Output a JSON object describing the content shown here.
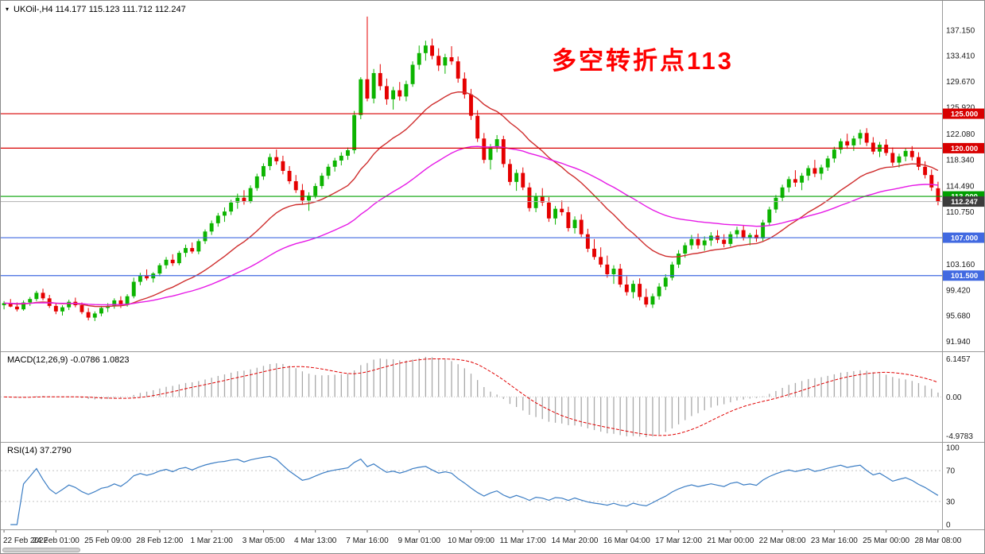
{
  "chart_data": {
    "type": "candlestick",
    "symbol": "UKOil-",
    "timeframe": "H4",
    "title": "UKOil-,H4  114.177 115.123 111.712 112.247",
    "ohlc_last": {
      "open": 114.177,
      "high": 115.123,
      "low": 111.712,
      "close": 112.247
    },
    "annotation": {
      "text": "多空转折点113",
      "color": "#fe0000"
    },
    "colors": {
      "candle_up": "#0cb400",
      "candle_down": "#e50000",
      "ma_fast": "#cf2e2e",
      "ma_slow": "#e619e6",
      "macd_bars": "#a9a9a9",
      "macd_signal": "#e00000",
      "rsi_line": "#3b7dc4",
      "current_badge": "#3c3c3c",
      "level_red": "#d80000",
      "level_green": "#00a000",
      "level_blue": "#4169e1"
    },
    "price_axis": {
      "min": 91.2,
      "max": 140.7,
      "ticks": [
        "137.150",
        "133.410",
        "129.670",
        "125.920",
        "122.080",
        "118.340",
        "114.490",
        "110.750",
        "107.010",
        "103.160",
        "99.420",
        "95.680",
        "91.940"
      ]
    },
    "levels": [
      {
        "price": 125.0,
        "label": "125.000",
        "color": "#d80000"
      },
      {
        "price": 120.0,
        "label": "120.000",
        "color": "#d80000"
      },
      {
        "price": 113.0,
        "label": "113.000",
        "color": "#00a000"
      },
      {
        "price": 107.0,
        "label": "107.000",
        "color": "#4169e1"
      },
      {
        "price": 101.5,
        "label": "101.500",
        "color": "#4169e1"
      }
    ],
    "current_price": {
      "value": 112.247,
      "label": "112.247"
    },
    "moving_averages": [
      {
        "period": 20,
        "color": "#cf2e2e"
      },
      {
        "period": 50,
        "color": "#e619e6"
      }
    ],
    "candles": [
      [
        97.2,
        97.8,
        96.6,
        97.5
      ],
      [
        97.5,
        98.1,
        96.9,
        97.0
      ],
      [
        97.0,
        97.6,
        96.3,
        96.6
      ],
      [
        96.6,
        97.9,
        96.4,
        97.6
      ],
      [
        97.6,
        98.4,
        97.1,
        98.1
      ],
      [
        98.1,
        99.3,
        97.8,
        99.0
      ],
      [
        99.0,
        99.6,
        97.9,
        98.2
      ],
      [
        98.2,
        98.7,
        96.8,
        97.1
      ],
      [
        97.1,
        97.5,
        95.9,
        96.3
      ],
      [
        96.3,
        97.2,
        95.7,
        96.9
      ],
      [
        96.9,
        98.0,
        96.5,
        97.7
      ],
      [
        97.7,
        98.3,
        96.9,
        97.2
      ],
      [
        97.2,
        97.6,
        95.9,
        96.2
      ],
      [
        96.2,
        96.8,
        95.0,
        95.4
      ],
      [
        95.4,
        96.3,
        94.9,
        96.0
      ],
      [
        96.0,
        97.1,
        95.6,
        96.8
      ],
      [
        96.8,
        97.5,
        96.2,
        97.1
      ],
      [
        97.1,
        98.2,
        96.7,
        97.9
      ],
      [
        97.9,
        98.5,
        96.8,
        97.3
      ],
      [
        97.3,
        98.8,
        97.0,
        98.5
      ],
      [
        98.5,
        101.2,
        98.2,
        100.6
      ],
      [
        100.6,
        101.9,
        100.1,
        101.5
      ],
      [
        101.5,
        102.4,
        100.8,
        101.1
      ],
      [
        101.1,
        102.0,
        100.5,
        101.8
      ],
      [
        101.8,
        103.3,
        101.4,
        103.0
      ],
      [
        103.0,
        104.2,
        102.5,
        103.8
      ],
      [
        103.8,
        104.6,
        102.9,
        103.3
      ],
      [
        103.3,
        105.1,
        103.0,
        104.8
      ],
      [
        104.8,
        106.0,
        104.2,
        105.5
      ],
      [
        105.5,
        106.3,
        104.7,
        105.0
      ],
      [
        105.0,
        106.8,
        104.6,
        106.5
      ],
      [
        106.5,
        108.2,
        106.1,
        107.9
      ],
      [
        107.9,
        109.5,
        107.4,
        109.1
      ],
      [
        109.1,
        110.6,
        108.6,
        110.2
      ],
      [
        110.2,
        111.4,
        109.3,
        110.8
      ],
      [
        110.8,
        112.5,
        110.3,
        112.1
      ],
      [
        112.1,
        113.4,
        111.2,
        112.8
      ],
      [
        112.8,
        113.9,
        111.8,
        112.3
      ],
      [
        112.3,
        114.6,
        112.0,
        114.2
      ],
      [
        114.2,
        116.3,
        113.8,
        115.9
      ],
      [
        115.9,
        117.8,
        115.4,
        117.4
      ],
      [
        117.4,
        119.2,
        116.8,
        118.7
      ],
      [
        118.7,
        119.8,
        117.6,
        118.1
      ],
      [
        118.1,
        118.9,
        116.2,
        116.7
      ],
      [
        116.7,
        117.4,
        114.8,
        115.2
      ],
      [
        115.2,
        116.1,
        113.5,
        113.9
      ],
      [
        113.9,
        114.8,
        111.9,
        112.4
      ],
      [
        112.4,
        113.6,
        110.9,
        113.1
      ],
      [
        113.1,
        114.9,
        112.7,
        114.5
      ],
      [
        114.5,
        116.4,
        114.1,
        116.0
      ],
      [
        116.0,
        117.7,
        115.5,
        117.3
      ],
      [
        117.3,
        118.6,
        116.6,
        118.2
      ],
      [
        118.2,
        119.4,
        117.5,
        118.9
      ],
      [
        118.9,
        120.1,
        118.3,
        119.7
      ],
      [
        119.7,
        125.4,
        119.2,
        124.8
      ],
      [
        124.8,
        130.3,
        124.2,
        130.0
      ],
      [
        130.0,
        139.1,
        126.8,
        127.2
      ],
      [
        127.2,
        131.5,
        126.5,
        130.9
      ],
      [
        130.9,
        132.2,
        128.4,
        129.0
      ],
      [
        129.0,
        130.1,
        126.3,
        127.1
      ],
      [
        127.1,
        128.9,
        125.6,
        128.4
      ],
      [
        128.4,
        129.6,
        126.9,
        127.5
      ],
      [
        127.5,
        129.8,
        126.8,
        129.3
      ],
      [
        129.3,
        132.6,
        128.9,
        132.1
      ],
      [
        132.1,
        134.9,
        131.4,
        133.8
      ],
      [
        133.8,
        135.6,
        132.7,
        134.9
      ],
      [
        134.9,
        135.9,
        132.9,
        133.4
      ],
      [
        133.4,
        134.5,
        131.2,
        132.0
      ],
      [
        132.0,
        133.7,
        130.8,
        133.2
      ],
      [
        133.2,
        134.8,
        132.1,
        132.6
      ],
      [
        132.6,
        133.3,
        129.5,
        130.1
      ],
      [
        130.1,
        131.0,
        127.2,
        127.8
      ],
      [
        127.8,
        128.6,
        124.1,
        124.7
      ],
      [
        124.7,
        125.5,
        120.9,
        121.4
      ],
      [
        121.4,
        122.2,
        117.8,
        118.3
      ],
      [
        118.3,
        120.6,
        116.9,
        120.1
      ],
      [
        120.1,
        121.9,
        119.4,
        121.3
      ],
      [
        121.3,
        121.8,
        117.2,
        117.7
      ],
      [
        117.7,
        118.4,
        114.6,
        115.1
      ],
      [
        115.1,
        116.9,
        113.8,
        116.4
      ],
      [
        116.4,
        117.2,
        113.9,
        114.3
      ],
      [
        114.3,
        115.0,
        110.8,
        111.3
      ],
      [
        111.3,
        113.5,
        110.7,
        113.0
      ],
      [
        113.0,
        114.2,
        111.6,
        112.1
      ],
      [
        112.1,
        112.9,
        109.3,
        109.8
      ],
      [
        109.8,
        111.6,
        108.9,
        111.2
      ],
      [
        111.2,
        112.4,
        110.2,
        110.7
      ],
      [
        110.7,
        111.5,
        107.9,
        108.4
      ],
      [
        108.4,
        110.1,
        107.6,
        109.6
      ],
      [
        109.6,
        110.4,
        107.1,
        107.5
      ],
      [
        107.5,
        108.3,
        104.9,
        105.4
      ],
      [
        105.4,
        106.8,
        103.8,
        104.2
      ],
      [
        104.2,
        105.6,
        102.7,
        103.1
      ],
      [
        103.1,
        104.4,
        101.2,
        101.7
      ],
      [
        101.7,
        103.0,
        100.3,
        102.5
      ],
      [
        102.5,
        103.2,
        99.8,
        100.2
      ],
      [
        100.2,
        101.4,
        98.6,
        99.1
      ],
      [
        99.1,
        100.8,
        98.2,
        100.3
      ],
      [
        100.3,
        101.1,
        97.9,
        98.4
      ],
      [
        98.4,
        99.6,
        96.9,
        97.3
      ],
      [
        97.3,
        98.9,
        96.8,
        98.5
      ],
      [
        98.5,
        100.4,
        98.0,
        99.9
      ],
      [
        99.9,
        101.7,
        99.4,
        101.2
      ],
      [
        101.2,
        103.5,
        100.8,
        103.1
      ],
      [
        103.1,
        105.2,
        102.6,
        104.7
      ],
      [
        104.7,
        106.3,
        104.1,
        105.9
      ],
      [
        105.9,
        107.4,
        105.3,
        106.8
      ],
      [
        106.8,
        107.6,
        105.4,
        105.9
      ],
      [
        105.9,
        107.2,
        105.1,
        106.6
      ],
      [
        106.6,
        107.8,
        105.8,
        107.3
      ],
      [
        107.3,
        108.1,
        106.2,
        106.7
      ],
      [
        106.7,
        107.5,
        105.6,
        106.1
      ],
      [
        106.1,
        107.9,
        105.7,
        107.5
      ],
      [
        107.5,
        108.6,
        106.9,
        108.1
      ],
      [
        108.1,
        108.8,
        106.6,
        107.0
      ],
      [
        107.0,
        107.7,
        105.9,
        107.4
      ],
      [
        107.4,
        108.2,
        106.4,
        106.9
      ],
      [
        106.9,
        109.6,
        106.5,
        109.2
      ],
      [
        109.2,
        111.5,
        108.8,
        111.1
      ],
      [
        111.1,
        113.2,
        110.6,
        112.8
      ],
      [
        112.8,
        114.7,
        112.3,
        114.3
      ],
      [
        114.3,
        115.9,
        113.6,
        115.5
      ],
      [
        115.5,
        116.8,
        114.4,
        115.0
      ],
      [
        115.0,
        116.4,
        113.9,
        116.0
      ],
      [
        116.0,
        117.5,
        115.3,
        117.1
      ],
      [
        117.1,
        118.3,
        115.8,
        116.3
      ],
      [
        116.3,
        117.6,
        115.4,
        117.2
      ],
      [
        117.2,
        118.9,
        116.7,
        118.5
      ],
      [
        118.5,
        120.2,
        117.9,
        119.8
      ],
      [
        119.8,
        121.4,
        119.2,
        121.0
      ],
      [
        121.0,
        122.1,
        119.9,
        120.4
      ],
      [
        120.4,
        121.8,
        119.6,
        121.4
      ],
      [
        121.4,
        122.7,
        120.5,
        122.2
      ],
      [
        122.2,
        122.9,
        120.3,
        120.8
      ],
      [
        120.8,
        121.6,
        119.1,
        119.5
      ],
      [
        119.5,
        120.9,
        118.7,
        120.5
      ],
      [
        120.5,
        121.3,
        118.9,
        119.3
      ],
      [
        119.3,
        120.1,
        117.4,
        117.9
      ],
      [
        117.9,
        119.2,
        117.2,
        118.8
      ],
      [
        118.8,
        120.0,
        118.1,
        119.6
      ],
      [
        119.6,
        120.3,
        118.2,
        118.7
      ],
      [
        118.7,
        119.4,
        116.8,
        117.3
      ],
      [
        117.3,
        118.1,
        115.6,
        116.1
      ],
      [
        116.1,
        116.9,
        113.8,
        114.3
      ],
      [
        114.177,
        115.123,
        111.712,
        112.247
      ]
    ],
    "macd": {
      "label": "MACD(12,26,9) -0.0786 1.0823",
      "fast": 12,
      "slow": 26,
      "signal": 9,
      "axis": [
        "6.1457",
        "0.00",
        "-4.9783"
      ]
    },
    "rsi": {
      "label": "RSI(14) 37.2790",
      "period": 14,
      "levels": [
        70,
        30
      ],
      "axis": [
        "100",
        "70",
        "30",
        "0"
      ]
    },
    "time_labels": [
      "22 Feb 2022",
      "24 Feb 01:00",
      "25 Feb 09:00",
      "28 Feb 12:00",
      "1 Mar 21:00",
      "3 Mar 05:00",
      "4 Mar 13:00",
      "7 Mar 16:00",
      "9 Mar 01:00",
      "10 Mar 09:00",
      "11 Mar 17:00",
      "14 Mar 20:00",
      "16 Mar 04:00",
      "17 Mar 12:00",
      "21 Mar 00:00",
      "22 Mar 08:00",
      "23 Mar 16:00",
      "25 Mar 00:00",
      "28 Mar 08:00"
    ]
  }
}
